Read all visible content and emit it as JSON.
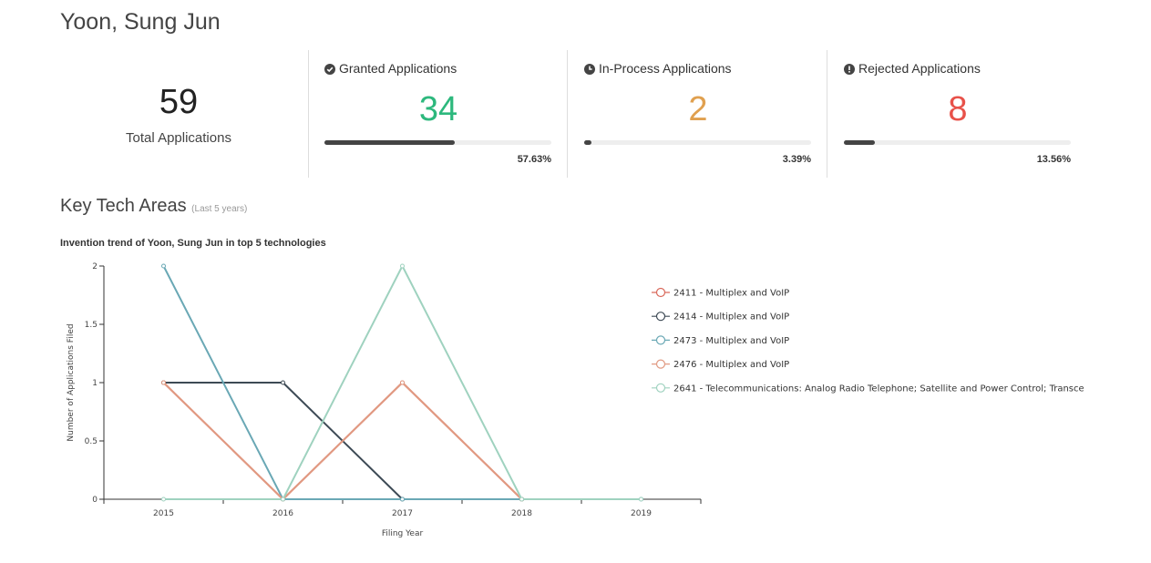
{
  "profile": {
    "name": "Yoon, Sung Jun"
  },
  "summary": {
    "total_value": "59",
    "total_label": "Total Applications"
  },
  "stats": [
    {
      "title": "Granted Applications",
      "value": "34",
      "percent_label": "57.63%",
      "fraction": 0.5763,
      "color": "#2db87d",
      "icon": "check-circle-icon"
    },
    {
      "title": "In-Process Applications",
      "value": "2",
      "percent_label": "3.39%",
      "fraction": 0.0339,
      "color": "#e0a04f",
      "icon": "clock-icon"
    },
    {
      "title": "Rejected Applications",
      "value": "8",
      "percent_label": "13.56%",
      "fraction": 0.1356,
      "color": "#e8524a",
      "icon": "exclamation-circle-icon"
    }
  ],
  "section": {
    "title": "Key Tech Areas",
    "subtitle": "(Last 5 years)"
  },
  "chart_data": {
    "type": "line",
    "title": "Invention trend of Yoon, Sung Jun in top 5 technologies",
    "xlabel": "Filing Year",
    "ylabel": "Number of Applications Filed",
    "x": [
      "2015",
      "2016",
      "2017",
      "2018",
      "2019"
    ],
    "ylim": [
      0,
      2
    ],
    "yticks": [
      "0",
      "0.5",
      "1",
      "1.5",
      "2"
    ],
    "legend_position": "right",
    "series": [
      {
        "name": "2411 - Multiplex and VoIP",
        "color": "#d9695b",
        "values": [
          1,
          0,
          1,
          0,
          null
        ]
      },
      {
        "name": "2414 - Multiplex and VoIP",
        "color": "#3d4a55",
        "values": [
          1,
          1,
          0,
          0,
          null
        ]
      },
      {
        "name": "2473 - Multiplex and VoIP",
        "color": "#6aa8b5",
        "values": [
          2,
          0,
          0,
          0,
          0
        ]
      },
      {
        "name": "2476 - Multiplex and VoIP",
        "color": "#e19a82",
        "values": [
          1,
          0,
          1,
          0,
          null
        ]
      },
      {
        "name": "2641 -  Telecommunications: Analog Radio Telephone; Satellite and Power Control; Transce",
        "color": "#9fd2bf",
        "values": [
          0,
          0,
          2,
          0,
          0
        ]
      }
    ]
  }
}
